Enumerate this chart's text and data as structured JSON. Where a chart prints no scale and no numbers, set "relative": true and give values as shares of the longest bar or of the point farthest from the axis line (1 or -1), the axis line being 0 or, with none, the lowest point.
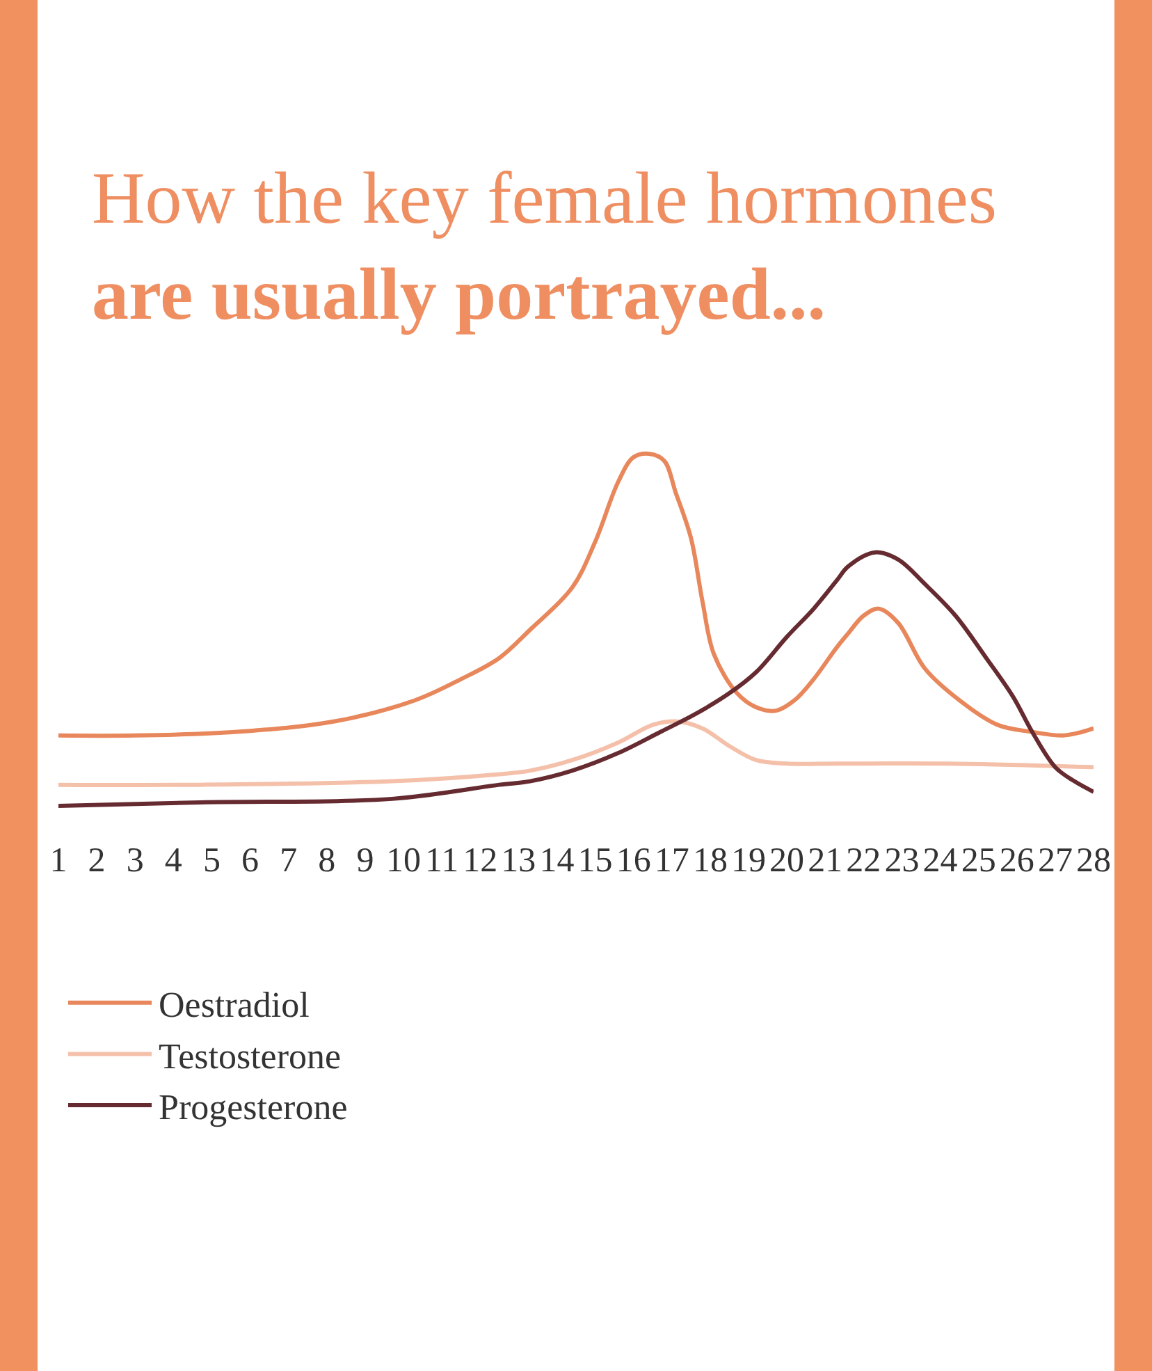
{
  "chart_data": {
    "type": "line",
    "title": "How the key female hormones\nare usually portrayed...",
    "relative": true,
    "xlim": [
      1,
      28
    ],
    "xticks": [
      1,
      2,
      3,
      4,
      5,
      6,
      7,
      8,
      9,
      10,
      11,
      12,
      13,
      14,
      15,
      16,
      17,
      18,
      19,
      20,
      21,
      22,
      23,
      24,
      25,
      26,
      27,
      28
    ],
    "tick_labels": "x",
    "legend": "bottom left",
    "series": [
      {
        "name": "Oestradiol",
        "color": "#e8875b",
        "x": [
          1,
          3.0,
          5.6,
          8.2,
          10.3,
          11.5,
          12.5,
          13.3,
          14.4,
          15.0,
          15.6,
          16.0,
          16.4,
          16.8,
          17.1,
          17.5,
          17.8,
          18.1,
          18.7,
          19.2,
          19.7,
          20.2,
          20.7,
          21.3,
          21.6,
          22.0,
          22.4,
          22.9,
          23.6,
          24.5,
          25.5,
          26.4,
          27.2,
          27.7,
          28
        ],
        "values": [
          0.2,
          0.2,
          0.21,
          0.24,
          0.3,
          0.36,
          0.42,
          0.5,
          0.62,
          0.75,
          0.92,
          0.99,
          1.0,
          0.98,
          0.89,
          0.76,
          0.58,
          0.43,
          0.32,
          0.28,
          0.27,
          0.3,
          0.36,
          0.45,
          0.49,
          0.54,
          0.56,
          0.52,
          0.39,
          0.3,
          0.23,
          0.21,
          0.2,
          0.21,
          0.22
        ]
      },
      {
        "name": "Testosterone",
        "color": "#f4c0aa",
        "x": [
          1,
          4.7,
          9.7,
          12.5,
          13.3,
          14.4,
          15.6,
          16.5,
          17.1,
          17.8,
          18.5,
          19.2,
          20.0,
          21.3,
          24.2,
          28
        ],
        "values": [
          0.06,
          0.06,
          0.07,
          0.09,
          0.1,
          0.13,
          0.18,
          0.23,
          0.24,
          0.22,
          0.17,
          0.13,
          0.12,
          0.12,
          0.12,
          0.11
        ]
      },
      {
        "name": "Progesterone",
        "color": "#662b30",
        "x": [
          1,
          4.7,
          9.7,
          12.5,
          13.3,
          14.4,
          15.6,
          16.7,
          17.6,
          18.5,
          19.2,
          20.0,
          20.7,
          21.3,
          21.6,
          22.3,
          22.9,
          23.6,
          24.4,
          25.2,
          25.9,
          26.4,
          27.0,
          27.5,
          28
        ],
        "values": [
          0.0,
          0.01,
          0.02,
          0.06,
          0.07,
          0.1,
          0.15,
          0.21,
          0.26,
          0.32,
          0.38,
          0.48,
          0.56,
          0.64,
          0.68,
          0.72,
          0.7,
          0.63,
          0.54,
          0.42,
          0.31,
          0.21,
          0.11,
          0.07,
          0.04
        ]
      }
    ]
  }
}
